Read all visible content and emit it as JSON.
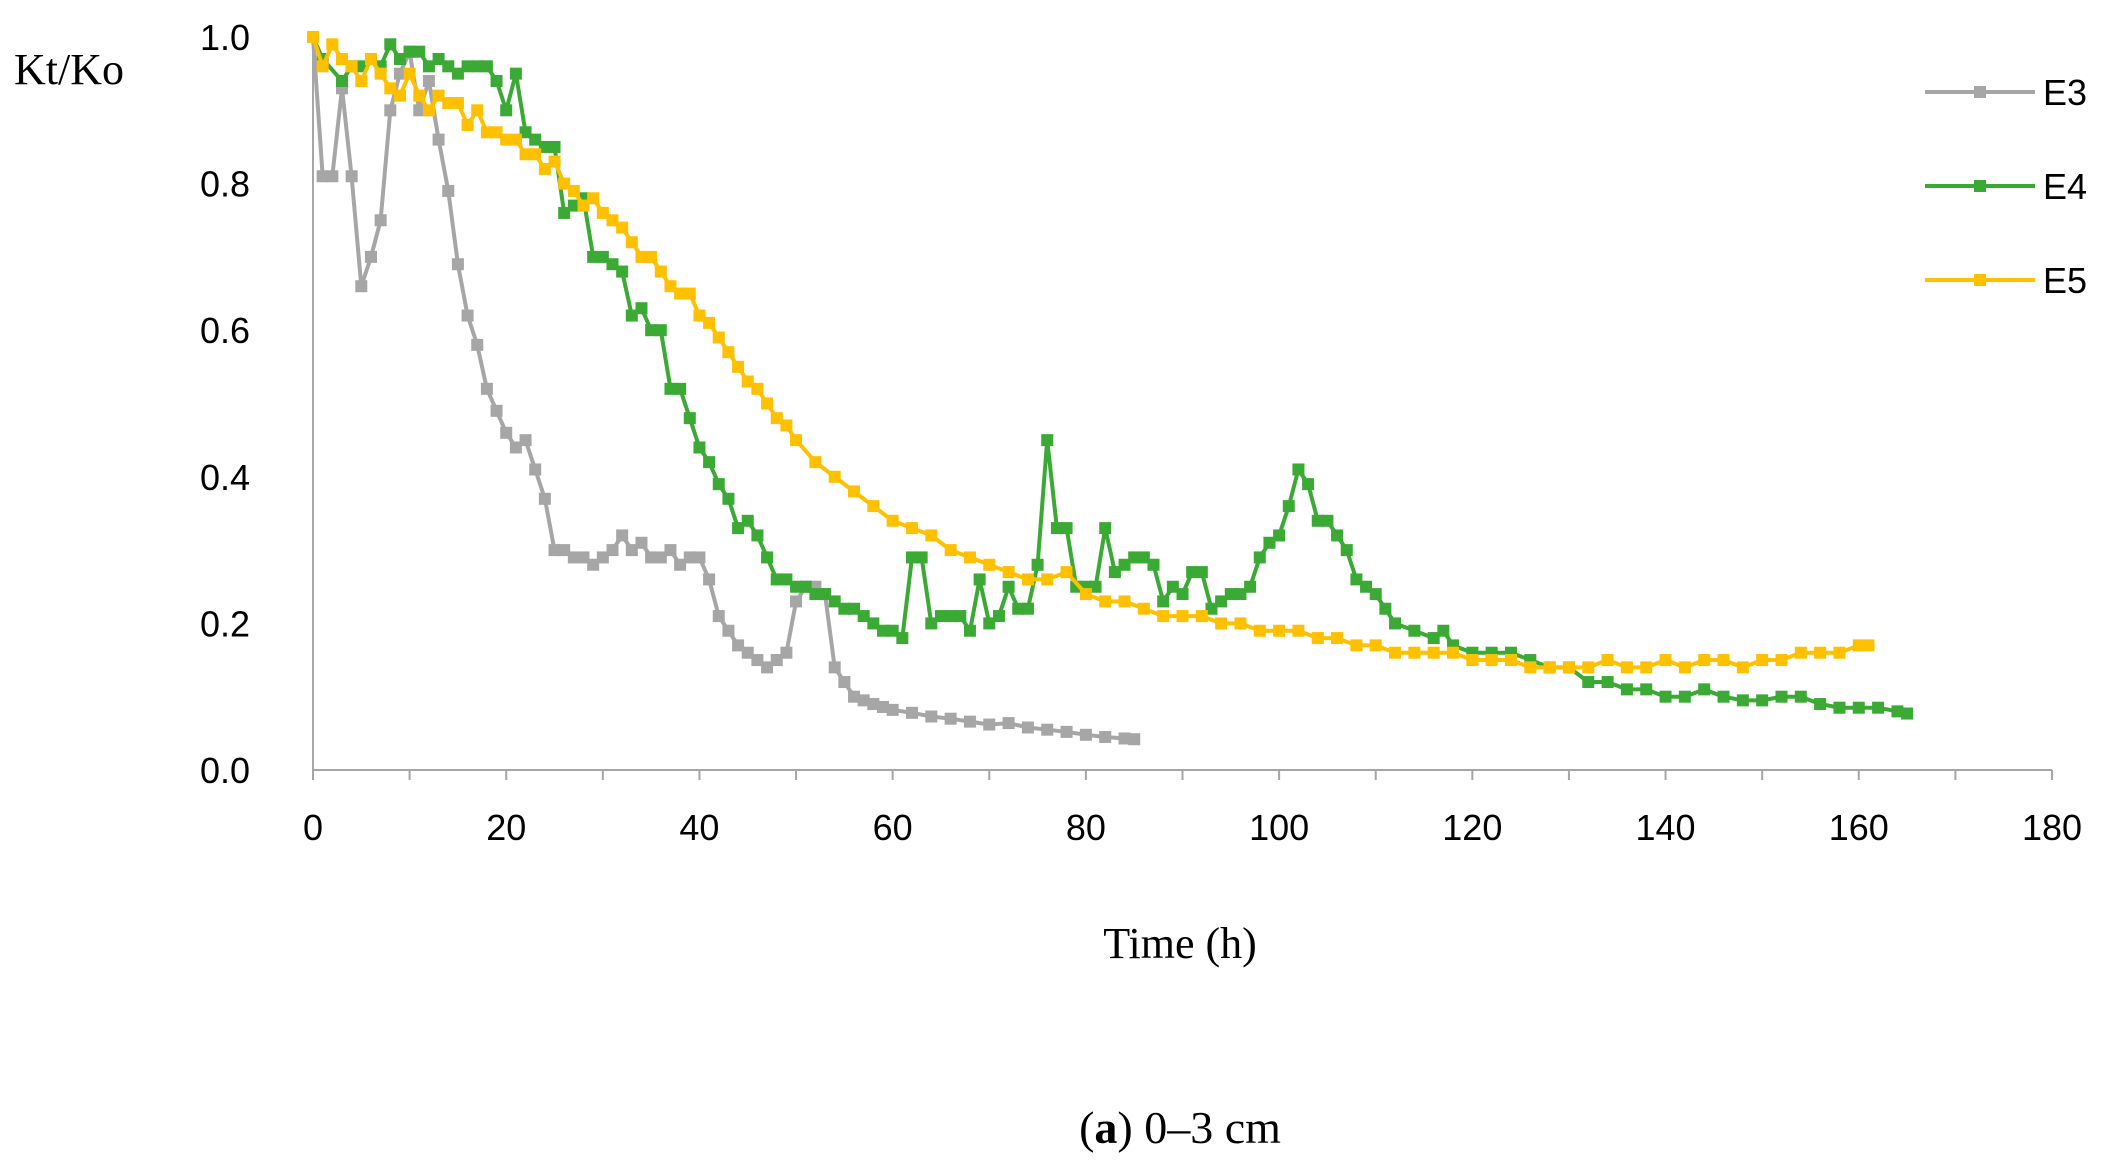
{
  "chart_data": {
    "type": "line",
    "ylabel": "Kt/Ko",
    "xlabel": "Time (h)",
    "xlim": [
      0,
      180
    ],
    "ylim": [
      0.0,
      1.0
    ],
    "x_ticks": [
      "0",
      "20",
      "40",
      "60",
      "80",
      "100",
      "120",
      "140",
      "160",
      "180"
    ],
    "y_ticks": [
      "0.0",
      "0.2",
      "0.4",
      "0.6",
      "0.8",
      "1.0"
    ],
    "legend_position": "top-right",
    "caption": {
      "open": "(",
      "bold": "a",
      "rest": ") 0–3 cm"
    },
    "series": [
      {
        "name": "E3",
        "color": "#a6a6a6",
        "points": [
          [
            0,
            1.0
          ],
          [
            1,
            0.81
          ],
          [
            2,
            0.81
          ],
          [
            3,
            0.93
          ],
          [
            4,
            0.81
          ],
          [
            5,
            0.66
          ],
          [
            6,
            0.7
          ],
          [
            7,
            0.75
          ],
          [
            8,
            0.9
          ],
          [
            9,
            0.95
          ],
          [
            10,
            0.98
          ],
          [
            11,
            0.9
          ],
          [
            12,
            0.94
          ],
          [
            13,
            0.86
          ],
          [
            14,
            0.79
          ],
          [
            15,
            0.69
          ],
          [
            16,
            0.62
          ],
          [
            17,
            0.58
          ],
          [
            18,
            0.52
          ],
          [
            19,
            0.49
          ],
          [
            20,
            0.46
          ],
          [
            21,
            0.44
          ],
          [
            22,
            0.45
          ],
          [
            23,
            0.41
          ],
          [
            24,
            0.37
          ],
          [
            25,
            0.3
          ],
          [
            26,
            0.3
          ],
          [
            27,
            0.29
          ],
          [
            28,
            0.29
          ],
          [
            29,
            0.28
          ],
          [
            30,
            0.29
          ],
          [
            31,
            0.3
          ],
          [
            32,
            0.32
          ],
          [
            33,
            0.3
          ],
          [
            34,
            0.31
          ],
          [
            35,
            0.29
          ],
          [
            36,
            0.29
          ],
          [
            37,
            0.3
          ],
          [
            38,
            0.28
          ],
          [
            39,
            0.29
          ],
          [
            40,
            0.29
          ],
          [
            41,
            0.26
          ],
          [
            42,
            0.21
          ],
          [
            43,
            0.19
          ],
          [
            44,
            0.17
          ],
          [
            45,
            0.16
          ],
          [
            46,
            0.15
          ],
          [
            47,
            0.14
          ],
          [
            48,
            0.15
          ],
          [
            49,
            0.16
          ],
          [
            50,
            0.23
          ],
          [
            51,
            0.25
          ],
          [
            52,
            0.25
          ],
          [
            53,
            0.24
          ],
          [
            54,
            0.14
          ],
          [
            55,
            0.12
          ],
          [
            56,
            0.1
          ],
          [
            57,
            0.095
          ],
          [
            58,
            0.09
          ],
          [
            59,
            0.086
          ],
          [
            60,
            0.082
          ],
          [
            62,
            0.078
          ],
          [
            64,
            0.073
          ],
          [
            66,
            0.07
          ],
          [
            68,
            0.066
          ],
          [
            70,
            0.062
          ],
          [
            72,
            0.064
          ],
          [
            74,
            0.058
          ],
          [
            76,
            0.055
          ],
          [
            78,
            0.052
          ],
          [
            80,
            0.048
          ],
          [
            82,
            0.045
          ],
          [
            84,
            0.043
          ],
          [
            85,
            0.042
          ]
        ]
      },
      {
        "name": "E4",
        "color": "#3aaa35",
        "points": [
          [
            0,
            1.0
          ],
          [
            1,
            0.97
          ],
          [
            3,
            0.94
          ],
          [
            4,
            0.96
          ],
          [
            5,
            0.96
          ],
          [
            6,
            0.97
          ],
          [
            7,
            0.96
          ],
          [
            8,
            0.99
          ],
          [
            9,
            0.97
          ],
          [
            10,
            0.98
          ],
          [
            11,
            0.98
          ],
          [
            12,
            0.96
          ],
          [
            13,
            0.97
          ],
          [
            14,
            0.96
          ],
          [
            15,
            0.95
          ],
          [
            16,
            0.96
          ],
          [
            17,
            0.96
          ],
          [
            18,
            0.96
          ],
          [
            19,
            0.94
          ],
          [
            20,
            0.9
          ],
          [
            21,
            0.95
          ],
          [
            22,
            0.87
          ],
          [
            23,
            0.86
          ],
          [
            24,
            0.85
          ],
          [
            25,
            0.85
          ],
          [
            26,
            0.76
          ],
          [
            27,
            0.77
          ],
          [
            28,
            0.78
          ],
          [
            29,
            0.7
          ],
          [
            30,
            0.7
          ],
          [
            31,
            0.69
          ],
          [
            32,
            0.68
          ],
          [
            33,
            0.62
          ],
          [
            34,
            0.63
          ],
          [
            35,
            0.6
          ],
          [
            36,
            0.6
          ],
          [
            37,
            0.52
          ],
          [
            38,
            0.52
          ],
          [
            39,
            0.48
          ],
          [
            40,
            0.44
          ],
          [
            41,
            0.42
          ],
          [
            42,
            0.39
          ],
          [
            43,
            0.37
          ],
          [
            44,
            0.33
          ],
          [
            45,
            0.34
          ],
          [
            46,
            0.32
          ],
          [
            47,
            0.29
          ],
          [
            48,
            0.26
          ],
          [
            49,
            0.26
          ],
          [
            50,
            0.25
          ],
          [
            51,
            0.25
          ],
          [
            52,
            0.24
          ],
          [
            53,
            0.24
          ],
          [
            54,
            0.23
          ],
          [
            55,
            0.22
          ],
          [
            56,
            0.22
          ],
          [
            57,
            0.21
          ],
          [
            58,
            0.2
          ],
          [
            59,
            0.19
          ],
          [
            60,
            0.19
          ],
          [
            61,
            0.18
          ],
          [
            62,
            0.29
          ],
          [
            63,
            0.29
          ],
          [
            64,
            0.2
          ],
          [
            65,
            0.21
          ],
          [
            66,
            0.21
          ],
          [
            67,
            0.21
          ],
          [
            68,
            0.19
          ],
          [
            69,
            0.26
          ],
          [
            70,
            0.2
          ],
          [
            71,
            0.21
          ],
          [
            72,
            0.25
          ],
          [
            73,
            0.22
          ],
          [
            74,
            0.22
          ],
          [
            75,
            0.28
          ],
          [
            76,
            0.45
          ],
          [
            77,
            0.33
          ],
          [
            78,
            0.33
          ],
          [
            79,
            0.25
          ],
          [
            80,
            0.25
          ],
          [
            81,
            0.25
          ],
          [
            82,
            0.33
          ],
          [
            83,
            0.27
          ],
          [
            84,
            0.28
          ],
          [
            85,
            0.29
          ],
          [
            86,
            0.29
          ],
          [
            87,
            0.28
          ],
          [
            88,
            0.23
          ],
          [
            89,
            0.25
          ],
          [
            90,
            0.24
          ],
          [
            91,
            0.27
          ],
          [
            92,
            0.27
          ],
          [
            93,
            0.22
          ],
          [
            94,
            0.23
          ],
          [
            95,
            0.24
          ],
          [
            96,
            0.24
          ],
          [
            97,
            0.25
          ],
          [
            98,
            0.29
          ],
          [
            99,
            0.31
          ],
          [
            100,
            0.32
          ],
          [
            101,
            0.36
          ],
          [
            102,
            0.41
          ],
          [
            103,
            0.39
          ],
          [
            104,
            0.34
          ],
          [
            105,
            0.34
          ],
          [
            106,
            0.32
          ],
          [
            107,
            0.3
          ],
          [
            108,
            0.26
          ],
          [
            109,
            0.25
          ],
          [
            110,
            0.24
          ],
          [
            111,
            0.22
          ],
          [
            112,
            0.2
          ],
          [
            114,
            0.19
          ],
          [
            116,
            0.18
          ],
          [
            117,
            0.19
          ],
          [
            118,
            0.17
          ],
          [
            120,
            0.16
          ],
          [
            122,
            0.16
          ],
          [
            124,
            0.16
          ],
          [
            126,
            0.15
          ],
          [
            128,
            0.14
          ],
          [
            130,
            0.14
          ],
          [
            132,
            0.12
          ],
          [
            134,
            0.12
          ],
          [
            136,
            0.11
          ],
          [
            138,
            0.11
          ],
          [
            140,
            0.1
          ],
          [
            142,
            0.1
          ],
          [
            144,
            0.11
          ],
          [
            146,
            0.1
          ],
          [
            148,
            0.095
          ],
          [
            150,
            0.095
          ],
          [
            152,
            0.1
          ],
          [
            154,
            0.1
          ],
          [
            156,
            0.09
          ],
          [
            158,
            0.085
          ],
          [
            160,
            0.085
          ],
          [
            162,
            0.085
          ],
          [
            164,
            0.08
          ],
          [
            165,
            0.077
          ]
        ]
      },
      {
        "name": "E5",
        "color": "#ffc000",
        "points": [
          [
            0,
            1.0
          ],
          [
            1,
            0.96
          ],
          [
            2,
            0.99
          ],
          [
            3,
            0.97
          ],
          [
            4,
            0.96
          ],
          [
            5,
            0.94
          ],
          [
            6,
            0.97
          ],
          [
            7,
            0.95
          ],
          [
            8,
            0.93
          ],
          [
            9,
            0.92
          ],
          [
            10,
            0.95
          ],
          [
            11,
            0.92
          ],
          [
            12,
            0.9
          ],
          [
            13,
            0.92
          ],
          [
            14,
            0.91
          ],
          [
            15,
            0.91
          ],
          [
            16,
            0.88
          ],
          [
            17,
            0.9
          ],
          [
            18,
            0.87
          ],
          [
            19,
            0.87
          ],
          [
            20,
            0.86
          ],
          [
            21,
            0.86
          ],
          [
            22,
            0.84
          ],
          [
            23,
            0.84
          ],
          [
            24,
            0.82
          ],
          [
            25,
            0.83
          ],
          [
            26,
            0.8
          ],
          [
            27,
            0.79
          ],
          [
            28,
            0.77
          ],
          [
            29,
            0.78
          ],
          [
            30,
            0.76
          ],
          [
            31,
            0.75
          ],
          [
            32,
            0.74
          ],
          [
            33,
            0.72
          ],
          [
            34,
            0.7
          ],
          [
            35,
            0.7
          ],
          [
            36,
            0.68
          ],
          [
            37,
            0.66
          ],
          [
            38,
            0.65
          ],
          [
            39,
            0.65
          ],
          [
            40,
            0.62
          ],
          [
            41,
            0.61
          ],
          [
            42,
            0.59
          ],
          [
            43,
            0.57
          ],
          [
            44,
            0.55
          ],
          [
            45,
            0.53
          ],
          [
            46,
            0.52
          ],
          [
            47,
            0.5
          ],
          [
            48,
            0.48
          ],
          [
            49,
            0.47
          ],
          [
            50,
            0.45
          ],
          [
            52,
            0.42
          ],
          [
            54,
            0.4
          ],
          [
            56,
            0.38
          ],
          [
            58,
            0.36
          ],
          [
            60,
            0.34
          ],
          [
            62,
            0.33
          ],
          [
            64,
            0.32
          ],
          [
            66,
            0.3
          ],
          [
            68,
            0.29
          ],
          [
            70,
            0.28
          ],
          [
            72,
            0.27
          ],
          [
            74,
            0.26
          ],
          [
            76,
            0.26
          ],
          [
            78,
            0.27
          ],
          [
            80,
            0.24
          ],
          [
            82,
            0.23
          ],
          [
            84,
            0.23
          ],
          [
            86,
            0.22
          ],
          [
            88,
            0.21
          ],
          [
            90,
            0.21
          ],
          [
            92,
            0.21
          ],
          [
            94,
            0.2
          ],
          [
            96,
            0.2
          ],
          [
            98,
            0.19
          ],
          [
            100,
            0.19
          ],
          [
            102,
            0.19
          ],
          [
            104,
            0.18
          ],
          [
            106,
            0.18
          ],
          [
            108,
            0.17
          ],
          [
            110,
            0.17
          ],
          [
            112,
            0.16
          ],
          [
            114,
            0.16
          ],
          [
            116,
            0.16
          ],
          [
            118,
            0.16
          ],
          [
            120,
            0.15
          ],
          [
            122,
            0.15
          ],
          [
            124,
            0.15
          ],
          [
            126,
            0.14
          ],
          [
            128,
            0.14
          ],
          [
            130,
            0.14
          ],
          [
            132,
            0.14
          ],
          [
            134,
            0.15
          ],
          [
            136,
            0.14
          ],
          [
            138,
            0.14
          ],
          [
            140,
            0.15
          ],
          [
            142,
            0.14
          ],
          [
            144,
            0.15
          ],
          [
            146,
            0.15
          ],
          [
            148,
            0.14
          ],
          [
            150,
            0.15
          ],
          [
            152,
            0.15
          ],
          [
            154,
            0.16
          ],
          [
            156,
            0.16
          ],
          [
            158,
            0.16
          ],
          [
            160,
            0.17
          ],
          [
            161,
            0.17
          ]
        ]
      }
    ]
  }
}
